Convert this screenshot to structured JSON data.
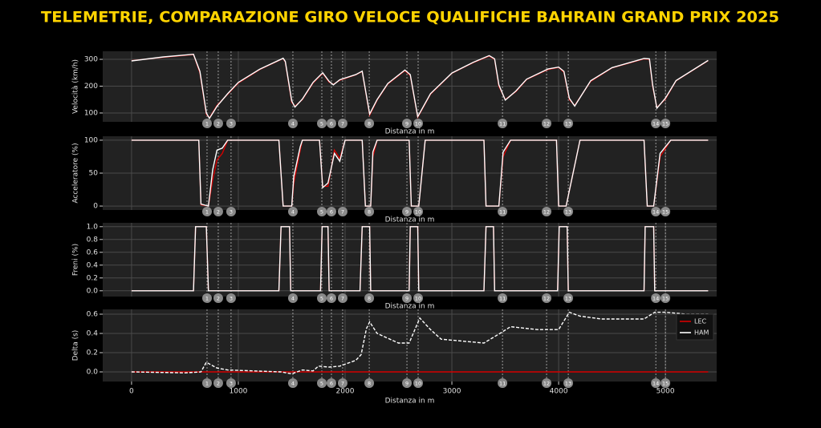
{
  "title": "TELEMETRIE, COMPARAZIONE GIRO VELOCE QUALIFICHE BAHRAIN GRAND PRIX 2025",
  "corners": {
    "labels": [
      "1",
      "2",
      "3",
      "4",
      "5",
      "6",
      "7",
      "8",
      "9",
      "10",
      "11",
      "12",
      "13",
      "14",
      "15"
    ],
    "distance": [
      707,
      812,
      932,
      1511,
      1782,
      1872,
      1977,
      2226,
      2579,
      2684,
      3474,
      3887,
      4090,
      4910,
      5000
    ]
  },
  "chart_data": [
    {
      "type": "line",
      "ylabel": "Velocità (km/h)",
      "xlabel": "Distanza in m",
      "grid": true,
      "xtick_labels": false,
      "xlim": [
        -270,
        5480
      ],
      "xticks": [
        0,
        1000,
        2000,
        3000,
        4000,
        5000
      ],
      "ylim": [
        67,
        330
      ],
      "yticks": [
        100,
        200,
        300
      ],
      "x": [
        0,
        300,
        580,
        640,
        700,
        730,
        800,
        900,
        1000,
        1200,
        1420,
        1440,
        1500,
        1530,
        1600,
        1700,
        1790,
        1850,
        1890,
        1950,
        2100,
        2160,
        2230,
        2300,
        2400,
        2560,
        2610,
        2680,
        2800,
        3000,
        3200,
        3350,
        3400,
        3440,
        3500,
        3600,
        3700,
        3900,
        4000,
        4050,
        4100,
        4150,
        4300,
        4500,
        4800,
        4850,
        4880,
        4920,
        5000,
        5100,
        5400
      ],
      "series": [
        {
          "name": "LEC",
          "color": "#d40000",
          "values": [
            295,
            308,
            318,
            250,
            95,
            82,
            128,
            170,
            212,
            262,
            303,
            290,
            140,
            125,
            150,
            212,
            248,
            215,
            207,
            222,
            242,
            255,
            92,
            148,
            208,
            258,
            240,
            84,
            170,
            248,
            288,
            312,
            300,
            200,
            150,
            180,
            225,
            262,
            270,
            252,
            150,
            128,
            218,
            268,
            302,
            300,
            200,
            120,
            152,
            220,
            295
          ]
        },
        {
          "name": "HAM",
          "color": "#ffffff",
          "values": [
            294,
            309,
            319,
            255,
            100,
            80,
            125,
            172,
            214,
            263,
            304,
            292,
            145,
            122,
            152,
            214,
            250,
            218,
            205,
            224,
            243,
            256,
            96,
            150,
            210,
            260,
            243,
            86,
            172,
            249,
            289,
            314,
            302,
            205,
            148,
            182,
            226,
            264,
            271,
            255,
            155,
            126,
            220,
            269,
            303,
            302,
            205,
            118,
            155,
            221,
            296
          ]
        }
      ]
    },
    {
      "type": "line",
      "ylabel": "Acceleratore (%)",
      "xlabel": "Distanza in m",
      "grid": true,
      "xtick_labels": false,
      "xlim": [
        -270,
        5480
      ],
      "xticks": [
        0,
        1000,
        2000,
        3000,
        4000,
        5000
      ],
      "ylim": [
        -6,
        106
      ],
      "yticks": [
        0,
        50,
        100
      ],
      "x": [
        0,
        630,
        650,
        720,
        760,
        800,
        850,
        900,
        1380,
        1420,
        1500,
        1520,
        1580,
        1600,
        1760,
        1790,
        1840,
        1900,
        1950,
        2000,
        2160,
        2190,
        2240,
        2260,
        2300,
        2600,
        2620,
        2690,
        2750,
        3300,
        3320,
        3440,
        3480,
        3550,
        3980,
        4000,
        4070,
        4200,
        4800,
        4830,
        4890,
        4950,
        5050,
        5400
      ],
      "series": [
        {
          "name": "LEC",
          "color": "#d40000",
          "values": [
            100,
            100,
            2,
            0,
            40,
            70,
            80,
            100,
            100,
            0,
            0,
            35,
            85,
            100,
            100,
            30,
            30,
            85,
            72,
            100,
            100,
            0,
            0,
            75,
            100,
            100,
            0,
            0,
            100,
            100,
            0,
            0,
            75,
            100,
            100,
            0,
            0,
            100,
            100,
            0,
            0,
            75,
            100,
            100
          ]
        },
        {
          "name": "HAM",
          "color": "#ffffff",
          "values": [
            100,
            100,
            3,
            0,
            55,
            85,
            88,
            100,
            100,
            0,
            0,
            45,
            90,
            100,
            100,
            28,
            35,
            80,
            68,
            100,
            100,
            0,
            0,
            82,
            100,
            100,
            0,
            0,
            100,
            100,
            0,
            0,
            82,
            100,
            100,
            0,
            0,
            100,
            100,
            0,
            0,
            80,
            100,
            100
          ]
        }
      ]
    },
    {
      "type": "line",
      "ylabel": "Freni (%)",
      "xlabel": "Distanza in m",
      "grid": true,
      "xtick_labels": false,
      "xlim": [
        -270,
        5480
      ],
      "xticks": [
        0,
        1000,
        2000,
        3000,
        4000,
        5000
      ],
      "ylim": [
        -0.09,
        1.06
      ],
      "yticks": [
        {
          "value": 0,
          "label": "0.0"
        },
        {
          "value": 0.2,
          "label": "0.2"
        },
        {
          "value": 0.4,
          "label": "0.4"
        },
        {
          "value": 0.6,
          "label": "0.6"
        },
        {
          "value": 0.8,
          "label": "0.8"
        },
        {
          "value": 1,
          "label": "1.0"
        }
      ],
      "x": [
        0,
        580,
        600,
        700,
        720,
        1380,
        1400,
        1480,
        1490,
        1770,
        1785,
        1840,
        1850,
        2140,
        2160,
        2230,
        2240,
        2600,
        2610,
        2680,
        2690,
        3300,
        3320,
        3390,
        3400,
        3990,
        4005,
        4080,
        4090,
        4800,
        4810,
        4890,
        4900,
        5400
      ],
      "series": [
        {
          "name": "LEC",
          "color": "#d40000",
          "values": [
            0,
            0,
            1,
            1,
            0,
            0,
            1,
            1,
            0,
            0,
            1,
            1,
            0,
            0,
            1,
            1,
            0,
            0,
            1,
            1,
            0,
            0,
            1,
            1,
            0,
            0,
            1,
            1,
            0,
            0,
            1,
            1,
            0,
            0
          ]
        },
        {
          "name": "HAM",
          "color": "#ffffff",
          "values": [
            0,
            0,
            1,
            1,
            0,
            0,
            1,
            1,
            0,
            0,
            1,
            1,
            0,
            0,
            1,
            1,
            0,
            0,
            1,
            1,
            0,
            0,
            1,
            1,
            0,
            0,
            1,
            1,
            0,
            0,
            1,
            1,
            0,
            0
          ]
        }
      ]
    },
    {
      "type": "line",
      "ylabel": "Delta (s)",
      "xlabel": "Distanza in m",
      "grid": true,
      "xtick_labels": true,
      "legend": "upper right",
      "xlim": [
        -270,
        5480
      ],
      "xticks": [
        0,
        1000,
        2000,
        3000,
        4000,
        5000
      ],
      "ylim": [
        -0.1,
        0.65
      ],
      "yticks": [
        {
          "value": 0,
          "label": "0.0"
        },
        {
          "value": 0.2,
          "label": "0.2"
        },
        {
          "value": 0.4,
          "label": "0.4"
        },
        {
          "value": 0.6,
          "label": "0.6"
        }
      ],
      "x": [
        0,
        500,
        650,
        700,
        800,
        900,
        1400,
        1500,
        1600,
        1700,
        1750,
        1850,
        1950,
        2100,
        2150,
        2200,
        2230,
        2300,
        2400,
        2500,
        2600,
        2700,
        2800,
        2900,
        3300,
        3450,
        3550,
        3800,
        4000,
        4100,
        4200,
        4400,
        4800,
        4900,
        5000,
        5200,
        5400
      ],
      "series": [
        {
          "name": "LEC",
          "color": "#d40000",
          "values": [
            0,
            0,
            0,
            0,
            0,
            0,
            0,
            0,
            0,
            0,
            0,
            0,
            0,
            0,
            0,
            0,
            0,
            0,
            0,
            0,
            0,
            0,
            0,
            0,
            0,
            0,
            0,
            0,
            0,
            0,
            0,
            0,
            0,
            0,
            0,
            0,
            0
          ]
        },
        {
          "name": "HAM",
          "color": "#ffffff",
          "dash": true,
          "values": [
            0,
            -0.01,
            0,
            0.1,
            0.04,
            0.02,
            0,
            -0.02,
            0.02,
            0.01,
            0.06,
            0.05,
            0.06,
            0.12,
            0.18,
            0.45,
            0.52,
            0.4,
            0.35,
            0.3,
            0.3,
            0.56,
            0.44,
            0.34,
            0.3,
            0.4,
            0.47,
            0.44,
            0.44,
            0.62,
            0.58,
            0.55,
            0.55,
            0.62,
            0.62,
            0.6,
            0.6
          ]
        }
      ]
    }
  ]
}
